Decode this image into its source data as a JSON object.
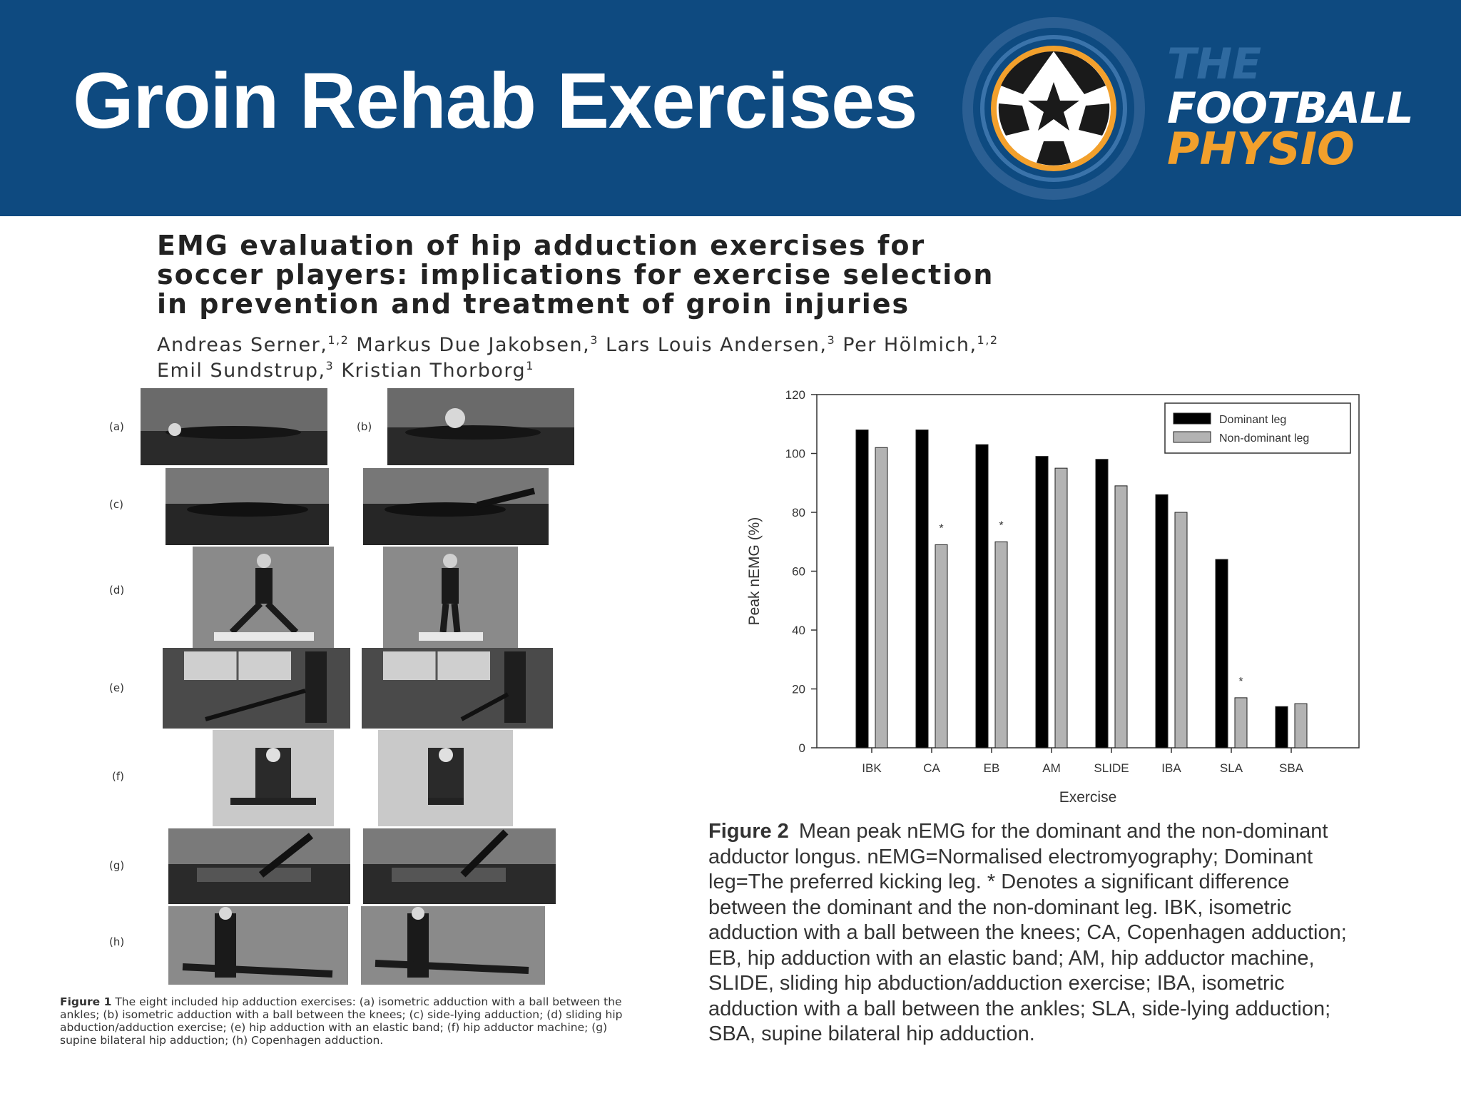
{
  "slide": {
    "title": "Groin Rehab Exercises",
    "logo": {
      "line1": "THE",
      "line2": "FOOTBALL",
      "line3": "PHYSIO"
    },
    "colors": {
      "banner": "#0e4a80",
      "logo_orange": "#f2a02c",
      "logo_blue": "#2f6aa0"
    }
  },
  "paper": {
    "title_lines": [
      "EMG evaluation of hip adduction exercises for",
      "soccer players: implications for exercise selection",
      "in prevention and treatment of groin injuries"
    ],
    "authors_lines": [
      [
        {
          "name": "Andreas Serner,",
          "sup": "1,2"
        },
        {
          "name": "Markus Due Jakobsen,",
          "sup": "3"
        },
        {
          "name": "Lars Louis Andersen,",
          "sup": "3"
        },
        {
          "name": "Per Hölmich,",
          "sup": "1,2"
        }
      ],
      [
        {
          "name": "Emil Sundstrup,",
          "sup": "3"
        },
        {
          "name": "Kristian Thorborg",
          "sup": "1"
        }
      ]
    ]
  },
  "figure1": {
    "panel_labels": [
      "(a)",
      "(b)",
      "(c)",
      "(d)",
      "(e)",
      "(f)",
      "(g)",
      "(h)"
    ],
    "caption_label": "Figure 1",
    "caption_text": "The eight included hip adduction exercises: (a) isometric adduction with a ball between the ankles; (b) isometric adduction with a ball between the knees; (c) side-lying adduction; (d) sliding hip abduction/adduction exercise; (e) hip adduction with an elastic band; (f) hip adductor machine; (g) supine bilateral hip adduction; (h) Copenhagen adduction."
  },
  "chart_data": {
    "type": "bar",
    "categories": [
      "IBK",
      "CA",
      "EB",
      "AM",
      "SLIDE",
      "IBA",
      "SLA",
      "SBA"
    ],
    "series": [
      {
        "name": "Dominant leg",
        "color": "#000000",
        "values": [
          108,
          108,
          103,
          99,
          98,
          86,
          64,
          14
        ]
      },
      {
        "name": "Non-dominant leg",
        "color": "#b3b3b3",
        "values": [
          102,
          69,
          70,
          95,
          89,
          80,
          17,
          15
        ]
      }
    ],
    "significant": [
      "CA",
      "EB",
      "SLA"
    ],
    "significance_marker": "*",
    "xlabel": "Exercise",
    "ylabel": "Peak nEMG (%)",
    "ylim": [
      0,
      120
    ],
    "yticks": [
      0,
      20,
      40,
      60,
      80,
      100,
      120
    ],
    "legend_position": "top-right",
    "grid": false
  },
  "figure2": {
    "caption_label": "Figure 2",
    "caption_lines": [
      "Mean peak nEMG for the dominant and the non-dominant",
      "adductor longus. nEMG=Normalised electromyography; Dominant",
      "leg=The preferred kicking leg. * Denotes a significant difference",
      "between the dominant and the non-dominant leg. IBK, isometric",
      "adduction with a ball between the knees; CA, Copenhagen adduction;",
      "EB, hip adduction with an elastic band; AM, hip adductor machine,",
      "SLIDE, sliding hip abduction/adduction exercise; IBA, isometric",
      "adduction with a ball between the ankles; SLA, side-lying adduction;",
      "SBA, supine bilateral hip adduction."
    ]
  }
}
